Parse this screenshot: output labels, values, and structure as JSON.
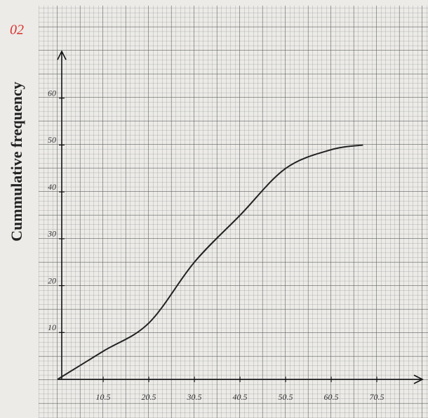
{
  "chart_data": {
    "type": "line",
    "annotation": "02",
    "y_label": "Cummulative frequency",
    "x": [
      0.5,
      10.5,
      20.5,
      30.5,
      40.5,
      50.5,
      60.5,
      67.5
    ],
    "series": [
      {
        "values": [
          0,
          6,
          12,
          25,
          35,
          45,
          49,
          50
        ],
        "color": "#222222"
      }
    ],
    "xlim": [
      0.5,
      80.5
    ],
    "ylim": [
      0,
      70
    ],
    "xticks": [
      10.5,
      20.5,
      30.5,
      40.5,
      50.5,
      60.5,
      70.5
    ],
    "yticks": [
      10,
      20,
      30,
      40,
      50,
      60
    ],
    "grid": true
  }
}
